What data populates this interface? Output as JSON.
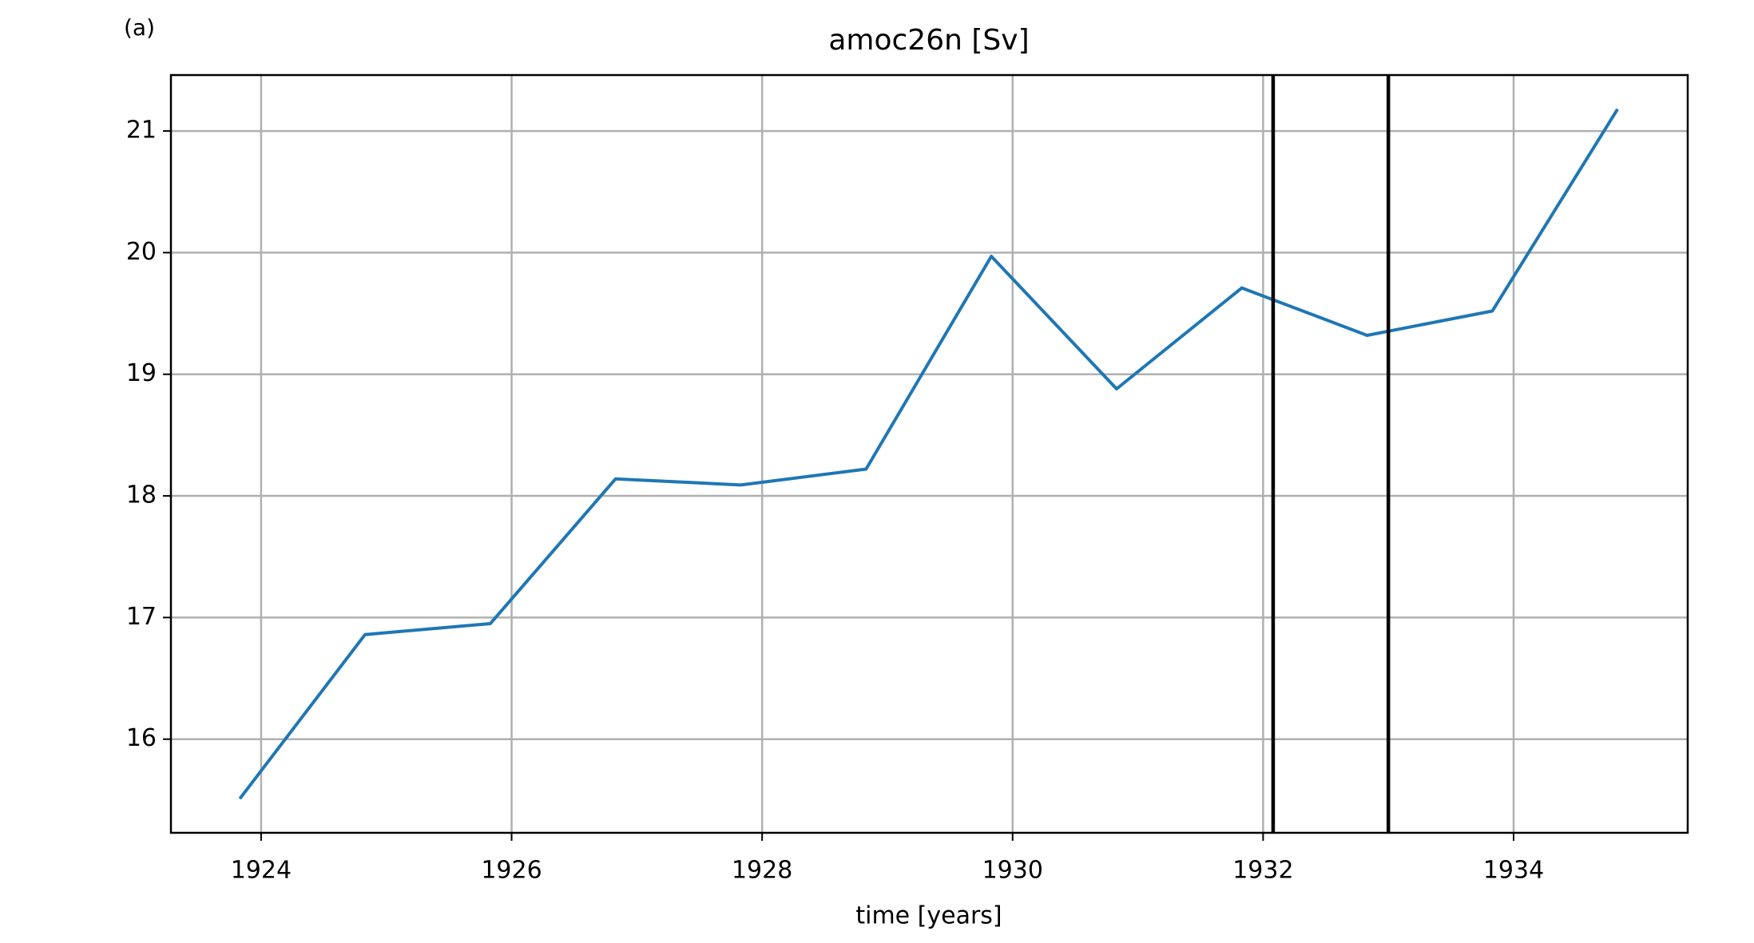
{
  "chart_data": {
    "type": "line",
    "panel_label": "(a)",
    "title": "amoc26n [Sv]",
    "x_label": "time [years]",
    "x": [
      1923.83,
      1924.83,
      1925.83,
      1926.83,
      1927.83,
      1928.83,
      1929.83,
      1930.83,
      1931.83,
      1932.83,
      1933.83,
      1934.83
    ],
    "series": [
      {
        "name": "amoc26n",
        "color": "#1f77b4",
        "values": [
          15.51,
          16.86,
          16.95,
          18.14,
          18.09,
          18.22,
          19.97,
          18.88,
          19.71,
          19.32,
          19.52,
          21.18
        ]
      }
    ],
    "vlines": [
      1932.08,
      1933.0
    ],
    "vline_color": "#000000",
    "xlim": [
      1923.28,
      1935.39
    ],
    "xticks": [
      1924,
      1926,
      1928,
      1930,
      1932,
      1934
    ],
    "ylim": [
      15.23,
      21.46
    ],
    "yticks": [
      16,
      17,
      18,
      19,
      20,
      21
    ],
    "grid": true
  }
}
